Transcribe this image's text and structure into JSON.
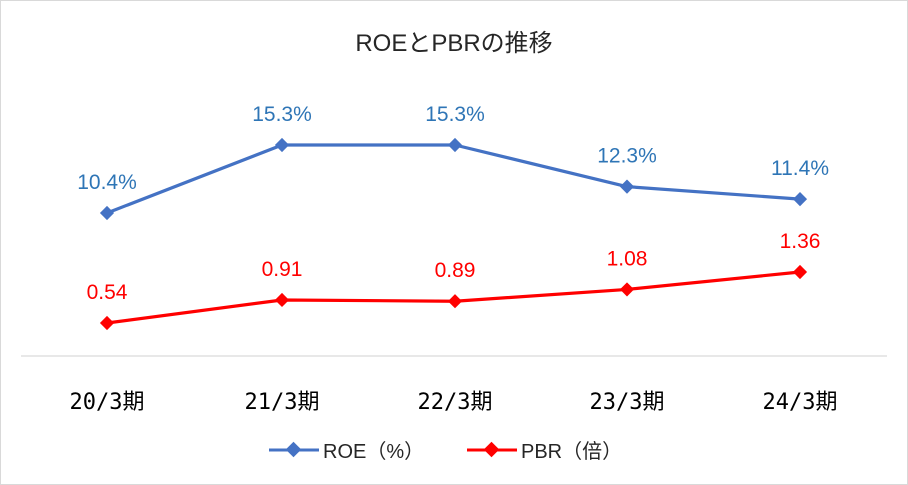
{
  "chart_data": {
    "type": "line",
    "title": "ROEとPBRの推移",
    "categories": [
      "20/3期",
      "21/3期",
      "22/3期",
      "23/3期",
      "24/3期"
    ],
    "series": [
      {
        "name": "ROE（%）",
        "color": "#4472c4",
        "values": [
          10.4,
          15.3,
          15.3,
          12.3,
          11.4
        ],
        "labels": [
          "10.4%",
          "15.3%",
          "15.3%",
          "12.3%",
          "11.4%"
        ]
      },
      {
        "name": "PBR（倍）",
        "color": "#ff0000",
        "values": [
          0.54,
          0.91,
          0.89,
          1.08,
          1.36
        ],
        "labels": [
          "0.54",
          "0.91",
          "0.89",
          "1.08",
          "1.36"
        ]
      }
    ],
    "grid": false,
    "legend": "bottom",
    "label_color_roe": "#2e75b6"
  }
}
